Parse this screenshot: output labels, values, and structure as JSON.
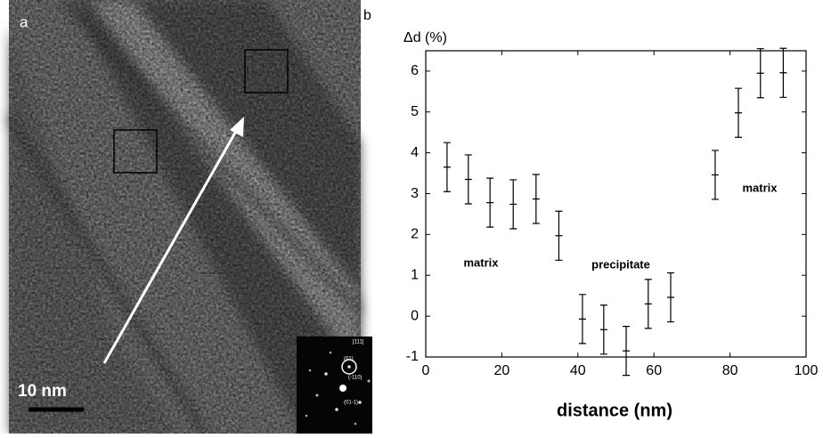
{
  "image_panel": {
    "label": "a",
    "scale_bar": "10 nm",
    "inset_labels": [
      "[111]",
      "(01)",
      "(-110)",
      "(01-1)"
    ]
  },
  "chart_data": {
    "type": "errorbar",
    "panel_label": "b",
    "y_label": "Δd (%)",
    "x_label": "distance (nm)",
    "x": [
      5.6,
      11.2,
      16.9,
      23,
      29,
      35,
      41.2,
      46.8,
      52.7,
      58.5,
      64.4,
      76.1,
      82.2,
      88,
      94
    ],
    "values": [
      3.65,
      3.35,
      2.78,
      2.74,
      2.87,
      1.97,
      -0.07,
      -0.33,
      -0.85,
      0.3,
      0.46,
      3.46,
      4.98,
      5.95,
      5.96
    ],
    "errors": [
      0.6,
      0.6,
      0.6,
      0.6,
      0.6,
      0.6,
      0.6,
      0.6,
      0.6,
      0.6,
      0.6,
      0.6,
      0.6,
      0.6,
      0.6
    ],
    "color": "#000000",
    "xlim": [
      0,
      100
    ],
    "xticks": [
      0,
      20,
      40,
      60,
      80,
      100
    ],
    "ylim": [
      -1,
      6.5
    ],
    "yticks": [
      -1,
      0,
      1,
      2,
      3,
      4,
      5,
      6
    ],
    "annotations": [
      "matrix",
      "precipitate",
      "matrix"
    ]
  }
}
